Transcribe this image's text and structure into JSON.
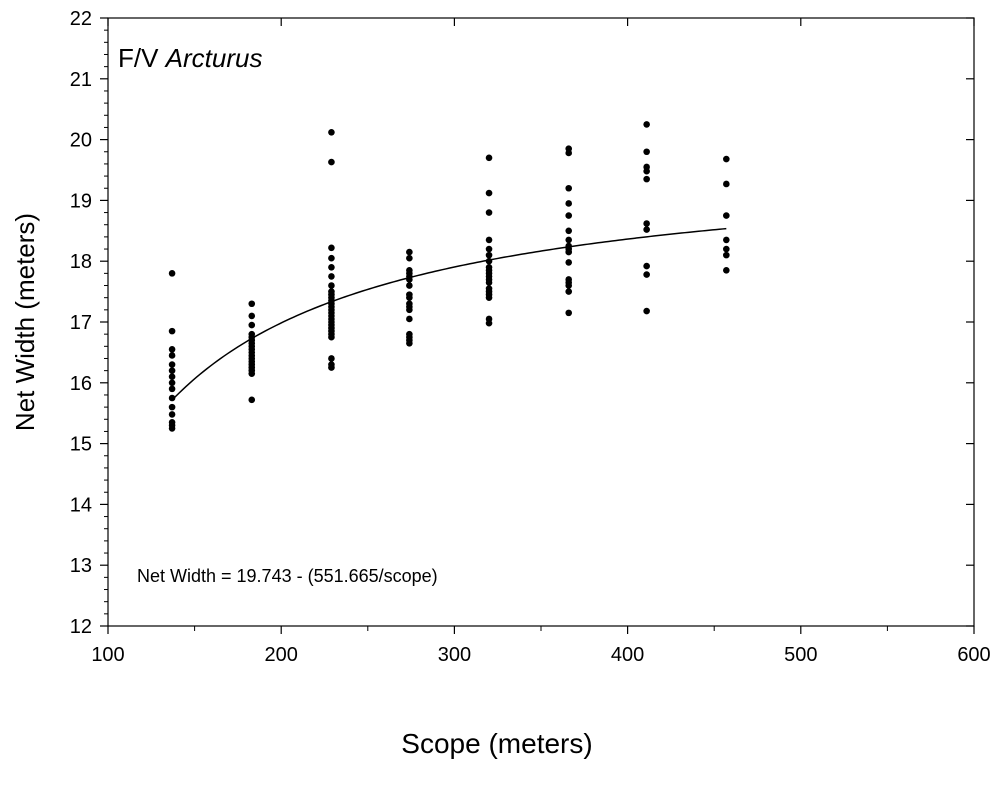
{
  "chart_data": {
    "type": "scatter",
    "title_prefix": "F/V ",
    "title_italic": "Arcturus",
    "xlabel": "Scope (meters)",
    "ylabel": "Net Width (meters)",
    "equation": "Net Width = 19.743 - (551.665/scope)",
    "xlim": [
      100,
      600
    ],
    "ylim": [
      12,
      22
    ],
    "xticks": [
      100,
      200,
      300,
      400,
      500,
      600
    ],
    "yticks": [
      12,
      13,
      14,
      15,
      16,
      17,
      18,
      19,
      20,
      21,
      22
    ],
    "grid": false,
    "marker_color": "#000000",
    "fit": {
      "intercept": 19.743,
      "coefficient": 551.665,
      "x_range": [
        137,
        457
      ]
    },
    "series": [
      {
        "points": [
          [
            137,
            17.8
          ],
          [
            137,
            16.85
          ],
          [
            137,
            16.55
          ],
          [
            137,
            16.45
          ],
          [
            137,
            16.3
          ],
          [
            137,
            16.2
          ],
          [
            137,
            16.1
          ],
          [
            137,
            16.0
          ],
          [
            137,
            15.9
          ],
          [
            137,
            15.75
          ],
          [
            137,
            15.6
          ],
          [
            137,
            15.48
          ],
          [
            137,
            15.35
          ],
          [
            137,
            15.3
          ],
          [
            137,
            15.25
          ],
          [
            183,
            17.3
          ],
          [
            183,
            17.1
          ],
          [
            183,
            16.95
          ],
          [
            183,
            16.8
          ],
          [
            183,
            16.75
          ],
          [
            183,
            16.7
          ],
          [
            183,
            16.65
          ],
          [
            183,
            16.6
          ],
          [
            183,
            16.55
          ],
          [
            183,
            16.5
          ],
          [
            183,
            16.45
          ],
          [
            183,
            16.4
          ],
          [
            183,
            16.35
          ],
          [
            183,
            16.3
          ],
          [
            183,
            16.25
          ],
          [
            183,
            16.2
          ],
          [
            183,
            16.15
          ],
          [
            183,
            15.72
          ],
          [
            229,
            20.12
          ],
          [
            229,
            19.63
          ],
          [
            229,
            18.22
          ],
          [
            229,
            18.05
          ],
          [
            229,
            17.9
          ],
          [
            229,
            17.75
          ],
          [
            229,
            17.6
          ],
          [
            229,
            17.5
          ],
          [
            229,
            17.45
          ],
          [
            229,
            17.4
          ],
          [
            229,
            17.35
          ],
          [
            229,
            17.3
          ],
          [
            229,
            17.25
          ],
          [
            229,
            17.2
          ],
          [
            229,
            17.15
          ],
          [
            229,
            17.1
          ],
          [
            229,
            17.05
          ],
          [
            229,
            17.0
          ],
          [
            229,
            16.95
          ],
          [
            229,
            16.9
          ],
          [
            229,
            16.85
          ],
          [
            229,
            16.8
          ],
          [
            229,
            16.75
          ],
          [
            229,
            16.4
          ],
          [
            229,
            16.3
          ],
          [
            229,
            16.25
          ],
          [
            274,
            18.15
          ],
          [
            274,
            18.05
          ],
          [
            274,
            17.85
          ],
          [
            274,
            17.8
          ],
          [
            274,
            17.75
          ],
          [
            274,
            17.7
          ],
          [
            274,
            17.6
          ],
          [
            274,
            17.45
          ],
          [
            274,
            17.4
          ],
          [
            274,
            17.3
          ],
          [
            274,
            17.25
          ],
          [
            274,
            17.2
          ],
          [
            274,
            17.05
          ],
          [
            274,
            16.8
          ],
          [
            274,
            16.75
          ],
          [
            274,
            16.7
          ],
          [
            274,
            16.65
          ],
          [
            320,
            19.7
          ],
          [
            320,
            19.12
          ],
          [
            320,
            18.8
          ],
          [
            320,
            18.35
          ],
          [
            320,
            18.2
          ],
          [
            320,
            18.1
          ],
          [
            320,
            18.0
          ],
          [
            320,
            17.9
          ],
          [
            320,
            17.85
          ],
          [
            320,
            17.8
          ],
          [
            320,
            17.75
          ],
          [
            320,
            17.7
          ],
          [
            320,
            17.65
          ],
          [
            320,
            17.55
          ],
          [
            320,
            17.5
          ],
          [
            320,
            17.45
          ],
          [
            320,
            17.4
          ],
          [
            320,
            17.05
          ],
          [
            320,
            16.98
          ],
          [
            366,
            19.85
          ],
          [
            366,
            19.78
          ],
          [
            366,
            19.2
          ],
          [
            366,
            18.95
          ],
          [
            366,
            18.75
          ],
          [
            366,
            18.5
          ],
          [
            366,
            18.35
          ],
          [
            366,
            18.25
          ],
          [
            366,
            18.2
          ],
          [
            366,
            18.15
          ],
          [
            366,
            17.98
          ],
          [
            366,
            17.7
          ],
          [
            366,
            17.65
          ],
          [
            366,
            17.6
          ],
          [
            366,
            17.5
          ],
          [
            366,
            17.15
          ],
          [
            411,
            20.25
          ],
          [
            411,
            19.8
          ],
          [
            411,
            19.55
          ],
          [
            411,
            19.48
          ],
          [
            411,
            19.35
          ],
          [
            411,
            18.62
          ],
          [
            411,
            18.52
          ],
          [
            411,
            17.92
          ],
          [
            411,
            17.78
          ],
          [
            411,
            17.18
          ],
          [
            457,
            19.68
          ],
          [
            457,
            19.27
          ],
          [
            457,
            18.75
          ],
          [
            457,
            18.35
          ],
          [
            457,
            18.2
          ],
          [
            457,
            18.1
          ],
          [
            457,
            17.85
          ]
        ]
      }
    ]
  }
}
